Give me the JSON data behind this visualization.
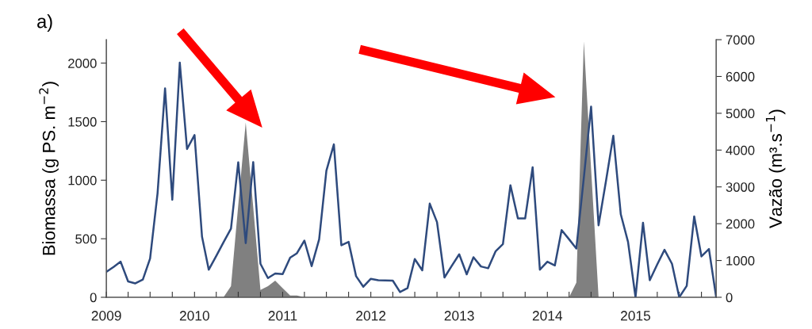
{
  "chart_data": {
    "type": "line",
    "title": "a)",
    "ylabel": "Biomassa (g PS. m$^{−2}$)",
    "y2label": "Vazão (m³.s$^{−1}$)",
    "x": [
      "2009-01",
      "2009-02",
      "2009-03",
      "2009-04",
      "2009-05",
      "2009-06",
      "2009-07",
      "2009-08",
      "2009-09",
      "2009-10",
      "2009-11",
      "2009-12",
      "2010-01",
      "2010-02",
      "2010-03",
      "2010-04",
      "2010-05",
      "2010-06",
      "2010-07",
      "2010-08",
      "2010-09",
      "2010-10",
      "2010-11",
      "2010-12",
      "2011-01",
      "2011-02",
      "2011-03",
      "2011-04",
      "2011-05",
      "2011-06",
      "2011-07",
      "2011-08",
      "2011-09",
      "2011-10",
      "2011-11",
      "2011-12",
      "2012-01",
      "2012-02",
      "2012-03",
      "2012-04",
      "2012-05",
      "2012-06",
      "2012-07",
      "2012-08",
      "2012-09",
      "2012-10",
      "2012-11",
      "2012-12",
      "2013-01",
      "2013-02",
      "2013-03",
      "2013-04",
      "2013-05",
      "2013-06",
      "2013-07",
      "2013-08",
      "2013-09",
      "2013-10",
      "2013-11",
      "2013-12",
      "2014-01",
      "2014-02",
      "2014-03",
      "2014-04",
      "2014-05",
      "2014-06",
      "2014-07",
      "2014-08",
      "2014-09",
      "2014-10",
      "2014-11",
      "2014-12",
      "2015-01",
      "2015-02",
      "2015-03",
      "2015-04",
      "2015-05",
      "2015-06",
      "2015-07",
      "2015-08",
      "2015-09",
      "2015-10",
      "2015-11",
      "2015-12"
    ],
    "series": [
      {
        "type": "area",
        "axis": "y2",
        "color": "#808080",
        "values": [
          0,
          0,
          0,
          0,
          0,
          0,
          0,
          0,
          0,
          0,
          0,
          0,
          0,
          0,
          0,
          0,
          0,
          300,
          2500,
          4750,
          2450,
          200,
          300,
          450,
          250,
          50,
          50,
          0,
          0,
          0,
          0,
          0,
          0,
          0,
          0,
          0,
          0,
          0,
          0,
          0,
          0,
          0,
          0,
          0,
          0,
          0,
          0,
          0,
          0,
          0,
          0,
          0,
          0,
          0,
          0,
          0,
          0,
          0,
          0,
          0,
          0,
          0,
          0,
          0,
          400,
          6950,
          3500,
          0,
          0,
          0,
          0,
          0,
          0,
          0,
          0,
          0,
          0,
          0,
          0,
          0,
          0,
          0,
          0,
          0
        ]
      },
      {
        "axis": "y",
        "color": "#2e4a7d",
        "values": [
          218,
          261,
          304,
          135,
          119,
          151,
          331,
          890,
          1784,
          833,
          2004,
          1266,
          1385,
          518,
          236,
          353,
          470,
          586,
          1153,
          462,
          1155,
          286,
          164,
          203,
          198,
          338,
          376,
          484,
          266,
          495,
          1081,
          1306,
          444,
          473,
          180,
          90,
          158,
          146,
          144,
          142,
          45,
          79,
          327,
          230,
          800,
          642,
          169,
          268,
          367,
          196,
          342,
          263,
          248,
          394,
          455,
          957,
          673,
          673,
          1110,
          236,
          304,
          272,
          574,
          495,
          417,
          1022,
          1628,
          615,
          997,
          1380,
          709,
          473,
          0,
          637,
          146,
          281,
          405,
          286,
          0,
          97,
          691,
          349,
          412,
          0
        ]
      }
    ],
    "xlim": [
      "2009-01",
      "2015-12"
    ],
    "xticks": [
      {
        "value": "2009-01",
        "label": "2009"
      },
      {
        "value": "2009-04",
        "label": null
      },
      {
        "value": "2009-07",
        "label": null
      },
      {
        "value": "2009-10",
        "label": null
      },
      {
        "value": "2010-01",
        "label": "2010"
      },
      {
        "value": "2010-04",
        "label": null
      },
      {
        "value": "2010-07",
        "label": null
      },
      {
        "value": "2010-10",
        "label": null
      },
      {
        "value": "2011-01",
        "label": "2011"
      },
      {
        "value": "2011-04",
        "label": null
      },
      {
        "value": "2011-07",
        "label": null
      },
      {
        "value": "2011-10",
        "label": null
      },
      {
        "value": "2012-01",
        "label": "2012"
      },
      {
        "value": "2012-04",
        "label": null
      },
      {
        "value": "2012-07",
        "label": null
      },
      {
        "value": "2012-10",
        "label": null
      },
      {
        "value": "2013-01",
        "label": "2013"
      },
      {
        "value": "2013-04",
        "label": null
      },
      {
        "value": "2013-07",
        "label": null
      },
      {
        "value": "2013-10",
        "label": null
      },
      {
        "value": "2014-01",
        "label": "2014"
      },
      {
        "value": "2014-04",
        "label": null
      },
      {
        "value": "2014-07",
        "label": null
      },
      {
        "value": "2014-10",
        "label": null
      },
      {
        "value": "2015-01",
        "label": "2015"
      },
      {
        "value": "2015-04",
        "label": null
      },
      {
        "value": "2015-07",
        "label": null
      },
      {
        "value": "2015-10",
        "label": null
      }
    ],
    "ylim": [
      0,
      2200
    ],
    "yticks": [
      0,
      500,
      1000,
      1500,
      2000
    ],
    "y2lim": [
      0,
      7000
    ],
    "y2ticks": [
      0,
      1000,
      2000,
      3000,
      4000,
      5000,
      6000,
      7000
    ],
    "grid": false,
    "legend": false
  }
}
